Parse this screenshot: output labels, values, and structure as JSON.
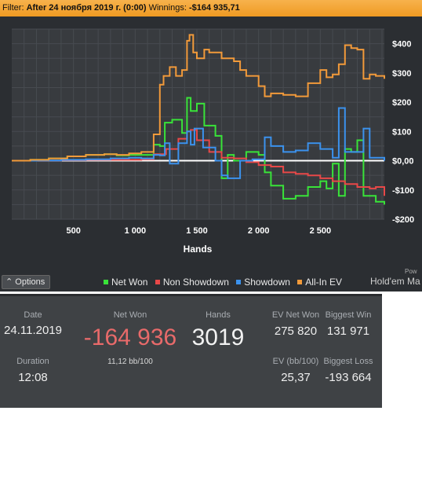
{
  "filter": {
    "label": "Filter:",
    "value": "After 24 ноября 2019 г. (0:00)",
    "winnings_label": "Winnings:",
    "winnings_value": "-$164 935,71"
  },
  "options_label": "Options",
  "powered_label": "Pow",
  "brand_label": "Hold'em Ma",
  "chart_data": {
    "type": "line",
    "title": "",
    "xlabel": "Hands",
    "ylabel": "",
    "xlim": [
      0,
      3019
    ],
    "ylim": [
      -200,
      450
    ],
    "x_ticks": [
      500,
      1000,
      1500,
      2000,
      2500
    ],
    "x_tick_labels": [
      "500",
      "1 000",
      "1 500",
      "2 000",
      "2 500"
    ],
    "y_ticks": [
      400,
      300,
      200,
      100,
      0,
      -100,
      -200
    ],
    "y_tick_labels": [
      "$400",
      "$300",
      "$200",
      "$100",
      "$0,00",
      "-$100",
      "-$200"
    ],
    "grid": true,
    "legend_position": "bottom",
    "units": "USD",
    "series": [
      {
        "name": "Net Won",
        "color": "#39e339",
        "x": [
          0,
          150,
          300,
          450,
          600,
          750,
          850,
          950,
          1050,
          1150,
          1200,
          1240,
          1300,
          1380,
          1420,
          1450,
          1500,
          1560,
          1650,
          1700,
          1750,
          1800,
          1900,
          2000,
          2050,
          2100,
          2200,
          2300,
          2400,
          2500,
          2550,
          2600,
          2650,
          2700,
          2750,
          2800,
          2850,
          2950,
          3019
        ],
        "y": [
          0,
          3,
          8,
          15,
          20,
          22,
          18,
          20,
          20,
          55,
          50,
          130,
          140,
          95,
          215,
          170,
          195,
          120,
          85,
          -60,
          20,
          0,
          30,
          20,
          -40,
          -85,
          -130,
          -120,
          -90,
          -70,
          -95,
          -10,
          -120,
          40,
          30,
          70,
          -120,
          -140,
          -150
        ]
      },
      {
        "name": "Non Showdown",
        "color": "#e84848",
        "x": [
          0,
          200,
          400,
          600,
          800,
          950,
          1050,
          1150,
          1250,
          1350,
          1420,
          1450,
          1500,
          1600,
          1700,
          1800,
          1900,
          2000,
          2100,
          2200,
          2300,
          2400,
          2500,
          2600,
          2700,
          2800,
          2900,
          2950,
          3019
        ],
        "y": [
          0,
          1,
          2,
          3,
          3,
          3,
          5,
          22,
          40,
          75,
          100,
          105,
          70,
          30,
          10,
          8,
          -5,
          -15,
          -20,
          -40,
          -45,
          -50,
          -60,
          -70,
          -80,
          -90,
          -95,
          -90,
          -120
        ]
      },
      {
        "name": "Showdown",
        "color": "#3b92ee",
        "x": [
          0,
          200,
          400,
          600,
          800,
          950,
          1050,
          1150,
          1200,
          1240,
          1280,
          1350,
          1420,
          1450,
          1480,
          1550,
          1650,
          1700,
          1750,
          1850,
          1950,
          2050,
          2100,
          2200,
          2300,
          2400,
          2500,
          2600,
          2650,
          2700,
          2800,
          2850,
          2900,
          3019
        ],
        "y": [
          0,
          1,
          3,
          5,
          8,
          10,
          8,
          20,
          18,
          60,
          -10,
          60,
          100,
          55,
          110,
          45,
          0,
          -50,
          -60,
          0,
          5,
          80,
          50,
          30,
          35,
          60,
          40,
          10,
          180,
          30,
          30,
          110,
          10,
          0
        ]
      },
      {
        "name": "All-In EV",
        "color": "#f29a3a",
        "x": [
          0,
          150,
          300,
          450,
          600,
          750,
          850,
          950,
          1050,
          1150,
          1200,
          1230,
          1280,
          1330,
          1380,
          1420,
          1440,
          1470,
          1500,
          1560,
          1600,
          1700,
          1800,
          1850,
          1900,
          2000,
          2050,
          2100,
          2200,
          2300,
          2400,
          2500,
          2550,
          2600,
          2650,
          2700,
          2750,
          2800,
          2850,
          2900,
          2950,
          3019
        ],
        "y": [
          0,
          3,
          8,
          15,
          20,
          22,
          20,
          25,
          30,
          90,
          260,
          290,
          320,
          290,
          310,
          410,
          430,
          370,
          350,
          380,
          370,
          350,
          340,
          310,
          290,
          255,
          220,
          230,
          225,
          220,
          265,
          310,
          285,
          295,
          330,
          395,
          385,
          380,
          280,
          295,
          290,
          280
        ]
      }
    ],
    "zero_line_color": "#ffffff"
  },
  "stats": {
    "date_label": "Date",
    "date_value": "24.11.2019",
    "duration_label": "Duration",
    "duration_value": "12:08",
    "netwon_label": "Net Won",
    "netwon_value": "-164 936",
    "bb_value": "11,12 bb/100",
    "hands_label": "Hands",
    "hands_value": "3019",
    "ev_net_won_label": "EV Net Won",
    "ev_net_won_value": "275 820",
    "biggest_win_label": "Biggest Win",
    "biggest_win_value": "131 971",
    "ev_bb_label": "EV (bb/100)",
    "ev_bb_value": "25,37",
    "biggest_loss_label": "Biggest Loss",
    "biggest_loss_value": "-193 664"
  }
}
